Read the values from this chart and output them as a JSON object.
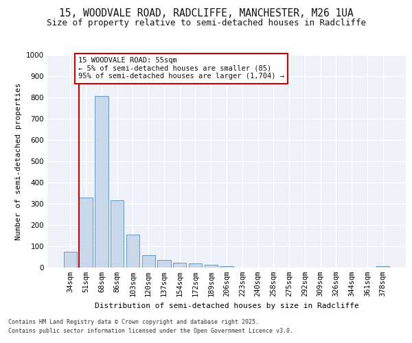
{
  "title": "15, WOODVALE ROAD, RADCLIFFE, MANCHESTER, M26 1UA",
  "subtitle": "Size of property relative to semi-detached houses in Radcliffe",
  "xlabel": "Distribution of semi-detached houses by size in Radcliffe",
  "ylabel": "Number of semi-detached properties",
  "categories": [
    "34sqm",
    "51sqm",
    "68sqm",
    "86sqm",
    "103sqm",
    "120sqm",
    "137sqm",
    "154sqm",
    "172sqm",
    "189sqm",
    "206sqm",
    "223sqm",
    "240sqm",
    "258sqm",
    "275sqm",
    "292sqm",
    "309sqm",
    "326sqm",
    "344sqm",
    "361sqm",
    "378sqm"
  ],
  "values": [
    75,
    330,
    805,
    315,
    155,
    57,
    35,
    22,
    18,
    12,
    7,
    0,
    0,
    0,
    0,
    0,
    0,
    0,
    0,
    0,
    8
  ],
  "bar_color": "#c8d8ea",
  "bar_edge_color": "#6699bb",
  "vline_color": "#cc0000",
  "vline_x": 0.575,
  "annotation_text": "15 WOODVALE ROAD: 55sqm\n← 5% of semi-detached houses are smaller (85)\n95% of semi-detached houses are larger (1,704) →",
  "annotation_box_color": "#cc0000",
  "annotation_bg": "#ffffff",
  "ylim": [
    0,
    1000
  ],
  "yticks": [
    0,
    100,
    200,
    300,
    400,
    500,
    600,
    700,
    800,
    900,
    1000
  ],
  "footer_line1": "Contains HM Land Registry data © Crown copyright and database right 2025.",
  "footer_line2": "Contains public sector information licensed under the Open Government Licence v3.0.",
  "bg_color": "#eef2f8",
  "title_fontsize": 10.5,
  "subtitle_fontsize": 9,
  "axis_label_fontsize": 8,
  "tick_fontsize": 7.5
}
